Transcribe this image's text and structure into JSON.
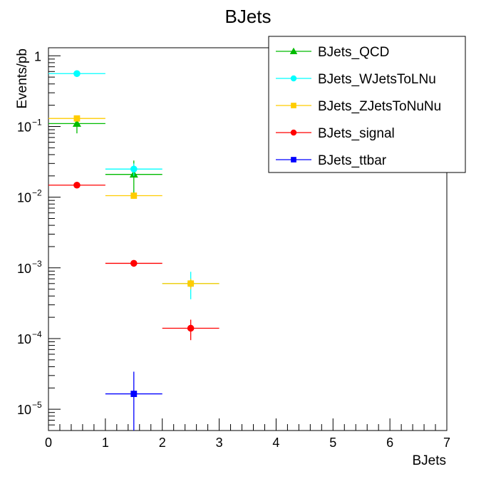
{
  "chart_data": {
    "type": "scatter",
    "title": "BJets",
    "xlabel": "BJets",
    "ylabel": "Events/pb",
    "xlim": [
      0,
      7
    ],
    "ylim": [
      5e-06,
      1.3
    ],
    "yscale": "log",
    "grid": false,
    "legend_position": "top-right",
    "x_ticks": [
      "0",
      "1",
      "2",
      "3",
      "4",
      "5",
      "6",
      "7"
    ],
    "y_ticks": [
      {
        "value": 1,
        "base": "1",
        "exp": ""
      },
      {
        "value": 0.1,
        "base": "10",
        "exp": "−1"
      },
      {
        "value": 0.01,
        "base": "10",
        "exp": "−2"
      },
      {
        "value": 0.001,
        "base": "10",
        "exp": "−3"
      },
      {
        "value": 0.0001,
        "base": "10",
        "exp": "−4"
      },
      {
        "value": 1e-05,
        "base": "10",
        "exp": "−5"
      }
    ],
    "series": [
      {
        "name": "BJets_QCD",
        "color": "#00bb00",
        "marker": "triangle",
        "points": [
          {
            "x": 0.5,
            "xerr": 0.5,
            "y": 0.11,
            "ylo": 0.08,
            "yhi": 0.135
          },
          {
            "x": 1.5,
            "xerr": 0.5,
            "y": 0.021,
            "ylo": 0.011,
            "yhi": 0.033
          }
        ]
      },
      {
        "name": "BJets_WJetsToLNu",
        "color": "#00ffff",
        "marker": "circle",
        "points": [
          {
            "x": 0.5,
            "xerr": 0.5,
            "y": 0.56,
            "ylo": 0.55,
            "yhi": 0.57
          },
          {
            "x": 1.5,
            "xerr": 0.5,
            "y": 0.025,
            "ylo": 0.02,
            "yhi": 0.03
          },
          {
            "x": 2.5,
            "xerr": 0.5,
            "y": 0.0006,
            "ylo": 0.00036,
            "yhi": 0.00088
          }
        ]
      },
      {
        "name": "BJets_ZJetsToNuNu",
        "color": "#ffcc00",
        "marker": "square",
        "points": [
          {
            "x": 0.5,
            "xerr": 0.5,
            "y": 0.13,
            "ylo": 0.12,
            "yhi": 0.14
          },
          {
            "x": 1.5,
            "xerr": 0.5,
            "y": 0.0105,
            "ylo": 0.0095,
            "yhi": 0.0115
          },
          {
            "x": 2.5,
            "xerr": 0.5,
            "y": 0.0006,
            "ylo": 0.0005,
            "yhi": 0.0007
          }
        ]
      },
      {
        "name": "BJets_signal",
        "color": "#ff0000",
        "marker": "circle",
        "points": [
          {
            "x": 0.5,
            "xerr": 0.5,
            "y": 0.0148,
            "ylo": 0.0145,
            "yhi": 0.0151
          },
          {
            "x": 1.5,
            "xerr": 0.5,
            "y": 0.00116,
            "ylo": 0.00108,
            "yhi": 0.00124
          },
          {
            "x": 2.5,
            "xerr": 0.5,
            "y": 0.00014,
            "ylo": 9.5e-05,
            "yhi": 0.000185
          }
        ]
      },
      {
        "name": "BJets_ttbar",
        "color": "#0000ff",
        "marker": "square",
        "points": [
          {
            "x": 1.5,
            "xerr": 0.5,
            "y": 1.65e-05,
            "ylo": 5e-06,
            "yhi": 3.4e-05
          }
        ]
      }
    ]
  }
}
